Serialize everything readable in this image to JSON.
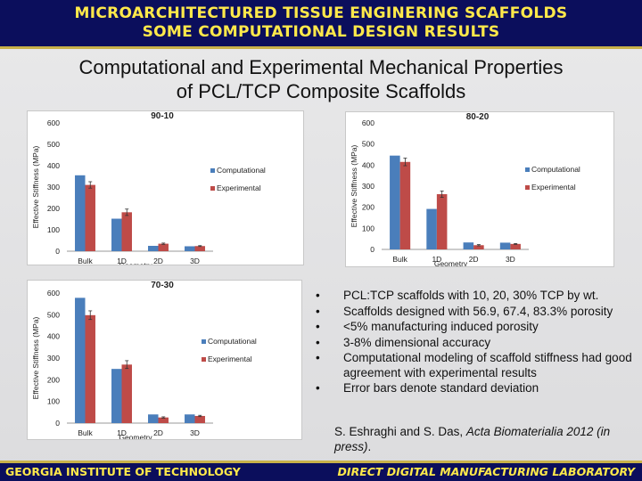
{
  "header": {
    "line1": "MICROARCHITECTURED TISSUE ENGINERING SCAFFOLDS",
    "line2": "SOME COMPUTATIONAL DESIGN RESULTS"
  },
  "slide_title": {
    "line1": "Computational and Experimental Mechanical Properties",
    "line2": "of PCL/TCP Composite Scaffolds"
  },
  "colors": {
    "computational": "#4a7ebb",
    "experimental": "#be4b48",
    "header_bg": "#0b0e5c",
    "header_text": "#ffe94a"
  },
  "chart_data": [
    {
      "type": "bar",
      "title": "90-10",
      "xlabel": "Geometry",
      "ylabel": "Effective Stiffness (MPa)",
      "ylim": [
        0,
        600
      ],
      "yticks": [
        "0",
        "100",
        "200",
        "300",
        "400",
        "500",
        "600"
      ],
      "categories": [
        "Bulk",
        "1D",
        "2D",
        "3D"
      ],
      "series": [
        {
          "name": "Computational",
          "values": [
            355,
            152,
            25,
            23
          ]
        },
        {
          "name": "Experimental",
          "values": [
            310,
            182,
            35,
            24
          ],
          "errors": [
            15,
            15,
            3,
            2
          ]
        }
      ],
      "legend": "right"
    },
    {
      "type": "bar",
      "title": "80-20",
      "xlabel": "Geometry",
      "ylabel": "Effective Stiffness (MPa)",
      "ylim": [
        0,
        600
      ],
      "yticks": [
        "0",
        "100",
        "200",
        "300",
        "400",
        "500",
        "600"
      ],
      "categories": [
        "Bulk",
        "1D",
        "2D",
        "3D"
      ],
      "series": [
        {
          "name": "Computational",
          "values": [
            445,
            192,
            33,
            32
          ]
        },
        {
          "name": "Experimental",
          "values": [
            415,
            262,
            20,
            26
          ],
          "errors": [
            18,
            15,
            3,
            2
          ]
        }
      ],
      "legend": "right"
    },
    {
      "type": "bar",
      "title": "70-30",
      "xlabel": "Geometry",
      "ylabel": "Effective Stiffness (MPa)",
      "ylim": [
        0,
        600
      ],
      "yticks": [
        "0",
        "100",
        "200",
        "300",
        "400",
        "500",
        "600"
      ],
      "categories": [
        "Bulk",
        "1D",
        "2D",
        "3D"
      ],
      "series": [
        {
          "name": "Computational",
          "values": [
            578,
            250,
            40,
            40
          ]
        },
        {
          "name": "Experimental",
          "values": [
            498,
            270,
            26,
            33
          ],
          "errors": [
            20,
            18,
            3,
            3
          ]
        }
      ],
      "legend": "right"
    }
  ],
  "bullets": [
    "PCL:TCP scaffolds with 10, 20, 30% TCP by wt.",
    "Scaffolds designed with 56.9, 67.4, 83.3% porosity",
    "<5% manufacturing induced porosity",
    "3-8% dimensional accuracy",
    "Computational modeling of scaffold stiffness had good agreement with experimental results",
    "Error bars denote standard deviation"
  ],
  "bullet_marker": "•",
  "citation": {
    "prefix": "S. Eshraghi and S. Das, ",
    "journal": "Acta Biomaterialia 2012 (in press)",
    "suffix": "."
  },
  "footer": {
    "left": "GEORGIA INSTITUTE OF TECHNOLOGY",
    "right": "DIRECT DIGITAL MANUFACTURING LABORATORY"
  }
}
